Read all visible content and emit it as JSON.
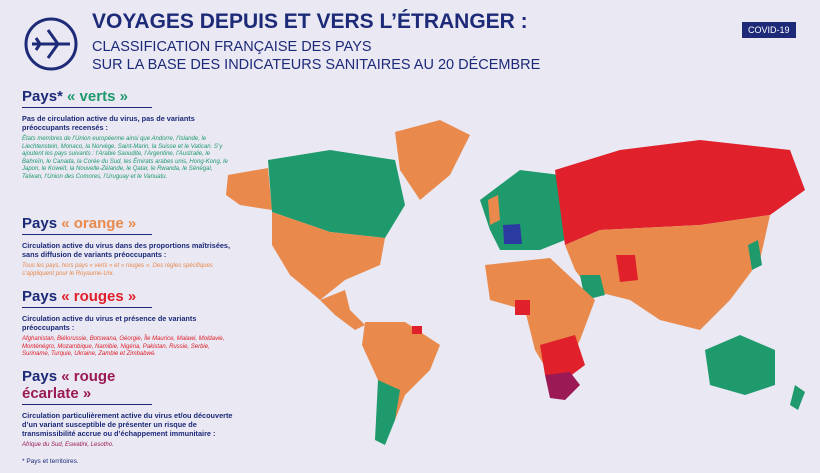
{
  "header": {
    "title": "VOYAGES DEPUIS ET VERS L’ÉTRANGER :",
    "subtitle_lines": [
      "CLASSIFICATION FRANÇAISE DES PAYS",
      "SUR LA BASE DES INDICATEURS SANITAIRES AU 20 DÉCEMBRE"
    ],
    "badge": "COVID-19"
  },
  "legend": [
    {
      "prefix": "Pays*",
      "label": "« verts »",
      "description": "Pas de circulation active du virus, pas de variants préoccupants recensés :",
      "details": "États membres de l’Union européenne ainsi que Andorre, l’Islande, le Liechtenstein, Monaco, la Norvège, Saint-Marin, la Suisse et le Vatican. S’y ajoutent les pays suivants : l’Arabie Saoudite, l’Argentine, l’Australie, le Bahreïn, le Canada, la Corée du Sud, les Émirats arabes unis, Hong-Kong, le Japon, le Koweït, la Nouvelle-Zélande, le Qatar, le Rwanda, le Sénégal, Taïwan, l’Union des Comores, l’Uruguay et le Vanuatu."
    },
    {
      "prefix": "Pays",
      "label": "« orange »",
      "description": "Circulation active du virus dans des proportions maîtrisées, sans diffusion de variants préoccupants :",
      "details": "Tous les pays, hors pays « verts » et « rouges ». Des règles spécifiques s’appliquent pour le Royaume-Uni."
    },
    {
      "prefix": "Pays",
      "label": "« rouges »",
      "description": "Circulation active du virus et présence de variants préoccupants :",
      "details": "Afghanistan, Biélorussie, Botswana, Géorgie, Île Maurice, Malawi, Moldavie, Monténégro, Mozambique, Namibie, Nigéria, Pakistan, Russie, Serbie, Suriname, Turquie, Ukraine, Zambie et Zimbabwé."
    },
    {
      "prefix": "Pays",
      "label": "« rouge écarlate »",
      "description": "Circulation particulièrement active du virus et/ou découverte d’un variant susceptible de présenter un risque de transmissibilité accrue ou d’échappement immunitaire :",
      "details": "Afrique du Sud, Eswatini, Lesotho."
    }
  ],
  "footnote": "* Pays et territoires."
}
